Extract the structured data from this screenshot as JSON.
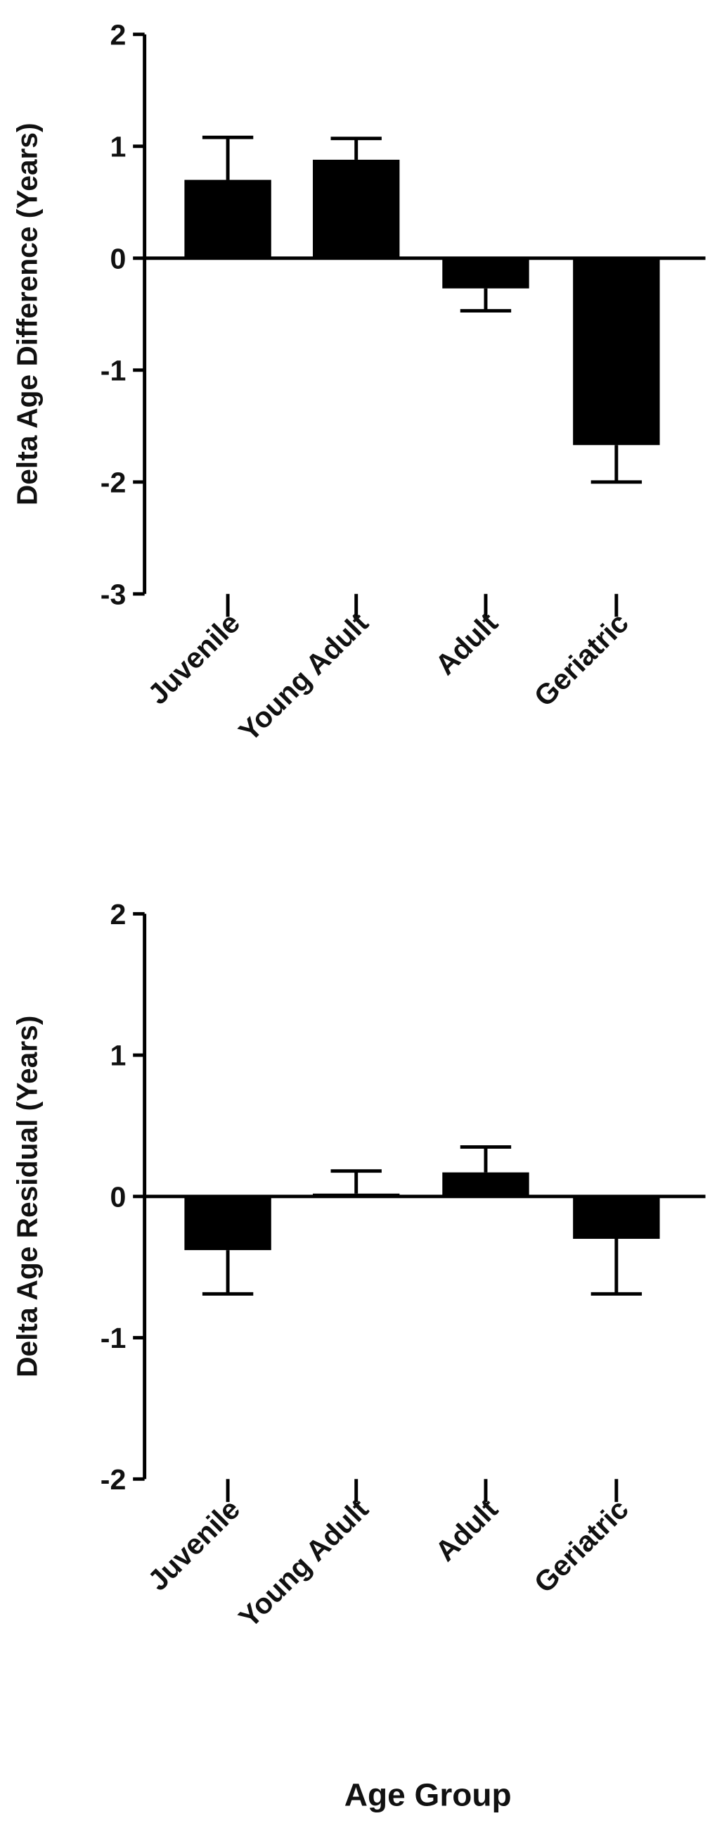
{
  "chart_data": [
    {
      "type": "bar",
      "ylabel": "Delta Age Difference (Years)",
      "categories": [
        "Juvenile",
        "Young Adult",
        "Adult",
        "Geriatric"
      ],
      "values": [
        0.7,
        0.88,
        -0.27,
        -1.67
      ],
      "errors": [
        0.38,
        0.19,
        0.2,
        0.33
      ],
      "color": "#000000",
      "ylim": [
        -3,
        2
      ],
      "yticks": [
        -3,
        -2,
        -1,
        0,
        1,
        2
      ]
    },
    {
      "type": "bar",
      "ylabel": "Delta Age Residual (Years)",
      "xlabel": "Age Group",
      "categories": [
        "Juvenile",
        "Young Adult",
        "Adult",
        "Geriatric"
      ],
      "values": [
        -0.38,
        0.02,
        0.17,
        -0.3
      ],
      "errors": [
        0.31,
        0.16,
        0.18,
        0.39
      ],
      "color": "#000000",
      "ylim": [
        -2,
        2
      ],
      "yticks": [
        -2,
        -1,
        0,
        1,
        2
      ]
    }
  ]
}
